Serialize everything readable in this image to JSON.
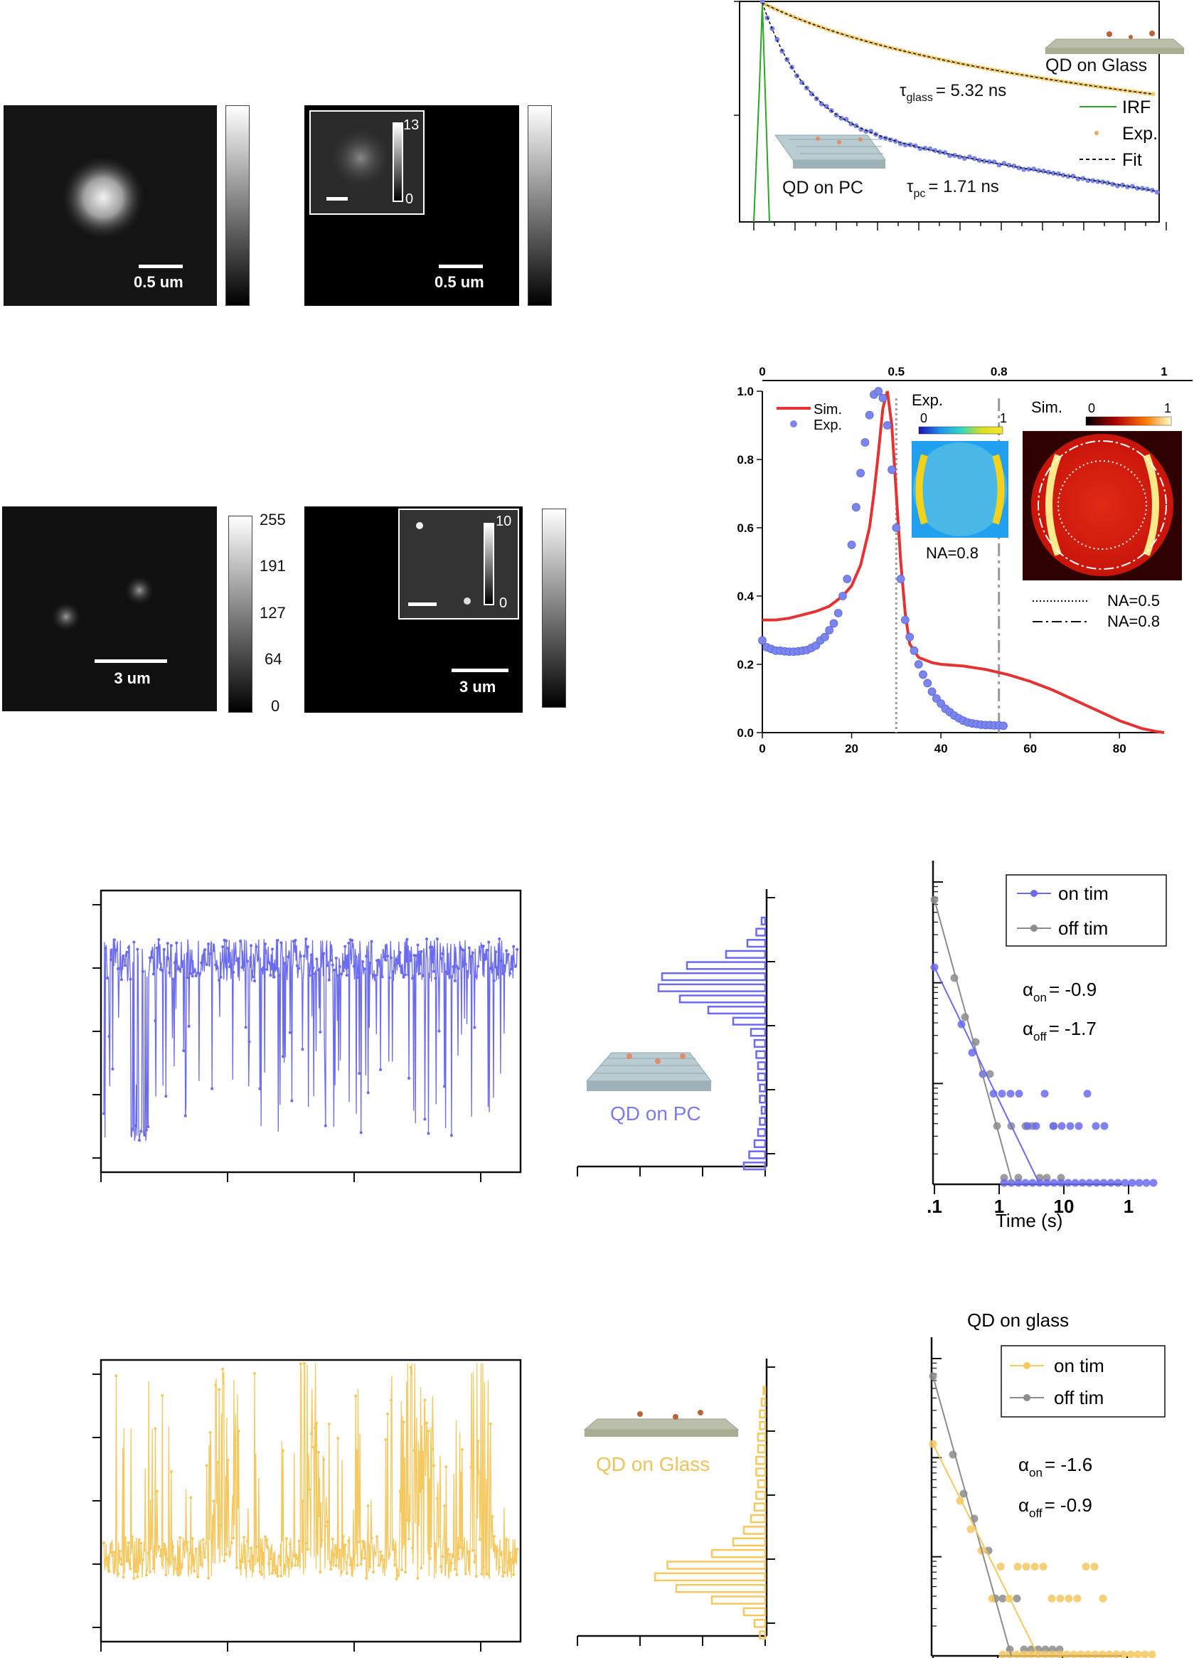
{
  "colors": {
    "blue": "#6b6bf0",
    "blue_point": "#7a86ee",
    "yellow": "#f5c860",
    "orange": "#f1a65e",
    "red": "#e53232",
    "green": "#2aa52a",
    "gray": "#8c8c8c"
  },
  "images": {
    "top_left_scale": "0.5 um",
    "top_right_scale": "0.5 um",
    "top_inset_max": "13",
    "top_inset_min": "0",
    "bottom_left_scale": "3 um",
    "bottom_right_scale": "3 um",
    "bottom_inset_max": "10",
    "bottom_inset_min": "0",
    "bottom_colorbar_ticks": [
      "255",
      "191",
      "127",
      "64",
      "0"
    ]
  },
  "chart_data": [
    {
      "id": "decay",
      "type": "line",
      "log_y": true,
      "legend": [
        "IRF",
        "Exp.",
        "Fit"
      ],
      "legend_placement": "right",
      "labels": {
        "glass": "QD on Glass",
        "pc": "QD on PC",
        "tau_glass_sym": "τ",
        "tau_glass_sub": "glass",
        "tau_glass_val": "= 5.32 ns",
        "tau_pc_sym": "τ",
        "tau_pc_sub": "pc",
        "tau_pc_val": "= 1.71 ns"
      },
      "series": [
        {
          "name": "IRF"
        },
        {
          "name": "Exp."
        },
        {
          "name": "Fit"
        }
      ],
      "lifetimes_ns": {
        "glass": 5.32,
        "pc": 1.71
      }
    },
    {
      "id": "angular",
      "type": "line",
      "x": [
        0,
        3,
        6,
        9,
        12,
        15,
        18,
        20,
        22,
        24,
        25,
        26,
        27,
        28,
        29,
        30,
        31,
        32,
        33,
        35,
        38,
        40,
        45,
        50,
        55,
        60,
        65,
        70,
        75,
        80,
        85,
        88,
        90
      ],
      "xlim": [
        0,
        90
      ],
      "ylim": [
        0,
        1.0
      ],
      "x_ticks": [
        "0",
        "20",
        "40",
        "60",
        "80"
      ],
      "y_ticks": [
        "0.0",
        "0.2",
        "0.4",
        "0.6",
        "0.8",
        "1.0"
      ],
      "top_ticks": [
        "0",
        "0.5",
        "0.8",
        "1"
      ],
      "legend": [
        "Sim.",
        "Exp."
      ],
      "series": [
        {
          "name": "Sim.",
          "values": [
            0.33,
            0.33,
            0.335,
            0.345,
            0.355,
            0.37,
            0.4,
            0.43,
            0.49,
            0.6,
            0.7,
            0.82,
            0.95,
            1.0,
            0.9,
            0.7,
            0.5,
            0.35,
            0.26,
            0.22,
            0.205,
            0.2,
            0.195,
            0.185,
            0.17,
            0.15,
            0.125,
            0.095,
            0.065,
            0.035,
            0.012,
            0.004,
            0.0
          ]
        },
        {
          "name": "Exp.",
          "x": [
            0,
            1,
            2,
            3,
            4,
            5,
            6,
            7,
            8,
            9,
            10,
            11,
            12,
            13,
            14,
            15,
            16,
            17,
            18,
            19,
            20,
            21,
            22,
            23,
            24,
            25,
            26,
            27,
            28,
            29,
            30,
            31,
            32,
            33,
            34,
            35,
            36,
            37,
            38,
            39,
            40,
            41,
            42,
            43,
            44,
            45,
            46,
            47,
            48,
            49,
            50,
            51,
            52,
            53,
            54
          ],
          "values": [
            0.27,
            0.25,
            0.245,
            0.24,
            0.24,
            0.238,
            0.237,
            0.237,
            0.238,
            0.24,
            0.242,
            0.248,
            0.255,
            0.27,
            0.28,
            0.3,
            0.32,
            0.35,
            0.4,
            0.45,
            0.55,
            0.66,
            0.76,
            0.85,
            0.93,
            0.99,
            1.0,
            0.98,
            0.9,
            0.77,
            0.6,
            0.45,
            0.33,
            0.28,
            0.24,
            0.2,
            0.17,
            0.145,
            0.12,
            0.1,
            0.085,
            0.07,
            0.06,
            0.05,
            0.042,
            0.035,
            0.03,
            0.027,
            0.025,
            0.023,
            0.022,
            0.022,
            0.021,
            0.021,
            0.02
          ]
        }
      ],
      "inset_exp": {
        "title": "Exp.",
        "min": "0",
        "max": "1",
        "na": "NA=0.8"
      },
      "inset_sim": {
        "title": "Sim.",
        "min": "0",
        "max": "1"
      },
      "na_lines": [
        {
          "label": "NA=0.5",
          "x": 30
        },
        {
          "label": "NA=0.8",
          "x": 53
        }
      ]
    },
    {
      "id": "trace_pc",
      "type": "line",
      "series": [
        {
          "name": "PC trace",
          "color": "blue"
        }
      ],
      "label": "QD on PC"
    },
    {
      "id": "hist_pc",
      "type": "bar",
      "orientation": "horizontal",
      "values": [
        0.02,
        0.05,
        0.1,
        0.22,
        0.44,
        0.58,
        0.6,
        0.48,
        0.32,
        0.18,
        0.08,
        0.06,
        0.05,
        0.04,
        0.04,
        0.03,
        0.03,
        0.02,
        0.03,
        0.04,
        0.06,
        0.09,
        0.12
      ]
    },
    {
      "id": "dist_pc",
      "type": "scatter",
      "log_x": true,
      "log_y": true,
      "x_ticks": [
        ".1",
        "1",
        "10",
        "1"
      ],
      "xlabel": "Time (s)",
      "legend": [
        "on tim",
        "off tim"
      ],
      "alpha_on_sym": "α",
      "alpha_on_sub": "on",
      "alpha_on_val": "= -0.9",
      "alpha_off_sym": "α",
      "alpha_off_sub": "off",
      "alpha_off_val": "= -1.7"
    },
    {
      "id": "trace_glass",
      "type": "line",
      "series": [
        {
          "name": "Glass trace",
          "color": "yellow"
        }
      ],
      "label": "QD on Glass"
    },
    {
      "id": "hist_glass",
      "type": "bar",
      "orientation": "horizontal",
      "values": [
        0.01,
        0.02,
        0.03,
        0.03,
        0.04,
        0.04,
        0.05,
        0.05,
        0.04,
        0.05,
        0.06,
        0.08,
        0.12,
        0.18,
        0.3,
        0.55,
        0.62,
        0.5,
        0.3,
        0.12,
        0.06,
        0.03
      ]
    },
    {
      "id": "dist_glass",
      "type": "scatter",
      "log_x": true,
      "log_y": true,
      "title": "QD on glass",
      "legend": [
        "on tim",
        "off tim"
      ],
      "alpha_on_sym": "α",
      "alpha_on_sub": "on",
      "alpha_on_val": "= -1.6",
      "alpha_off_sym": "α",
      "alpha_off_sub": "off",
      "alpha_off_val": "= -0.9"
    }
  ]
}
